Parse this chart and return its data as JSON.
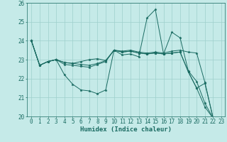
{
  "xlabel": "Humidex (Indice chaleur)",
  "bg_color": "#c5eae8",
  "grid_color": "#9ecfcc",
  "line_color": "#1a6b62",
  "xlim": [
    -0.5,
    23.4
  ],
  "ylim": [
    20,
    26
  ],
  "yticks": [
    20,
    21,
    22,
    23,
    24,
    25,
    26
  ],
  "xticks": [
    0,
    1,
    2,
    3,
    4,
    5,
    6,
    7,
    8,
    9,
    10,
    11,
    12,
    13,
    14,
    15,
    16,
    17,
    18,
    19,
    20,
    21,
    22,
    23
  ],
  "lines": [
    [
      24.0,
      22.7,
      22.9,
      23.0,
      22.2,
      21.7,
      21.4,
      21.35,
      21.2,
      21.4,
      23.5,
      23.25,
      23.3,
      23.15,
      25.2,
      25.65,
      23.3,
      24.45,
      24.15,
      22.4,
      21.85,
      20.7,
      19.9
    ],
    [
      24.0,
      22.7,
      22.9,
      23.0,
      22.75,
      22.7,
      22.65,
      22.6,
      22.75,
      22.9,
      23.5,
      23.45,
      23.5,
      23.4,
      23.35,
      23.4,
      23.35,
      23.45,
      23.5,
      23.4,
      23.35,
      21.8,
      19.9
    ],
    [
      24.0,
      22.7,
      22.9,
      23.0,
      22.85,
      22.8,
      22.75,
      22.7,
      22.8,
      22.95,
      23.5,
      23.4,
      23.45,
      23.35,
      23.3,
      23.35,
      23.3,
      23.35,
      23.4,
      22.35,
      21.5,
      20.5,
      19.9
    ],
    [
      24.0,
      22.7,
      22.9,
      23.0,
      22.85,
      22.8,
      22.9,
      23.0,
      23.05,
      22.95,
      23.5,
      23.4,
      23.45,
      23.35,
      23.3,
      23.35,
      23.3,
      23.35,
      23.4,
      22.35,
      21.5,
      21.75,
      19.9
    ]
  ],
  "xlabel_fontsize": 6.5,
  "tick_fontsize": 5.5
}
